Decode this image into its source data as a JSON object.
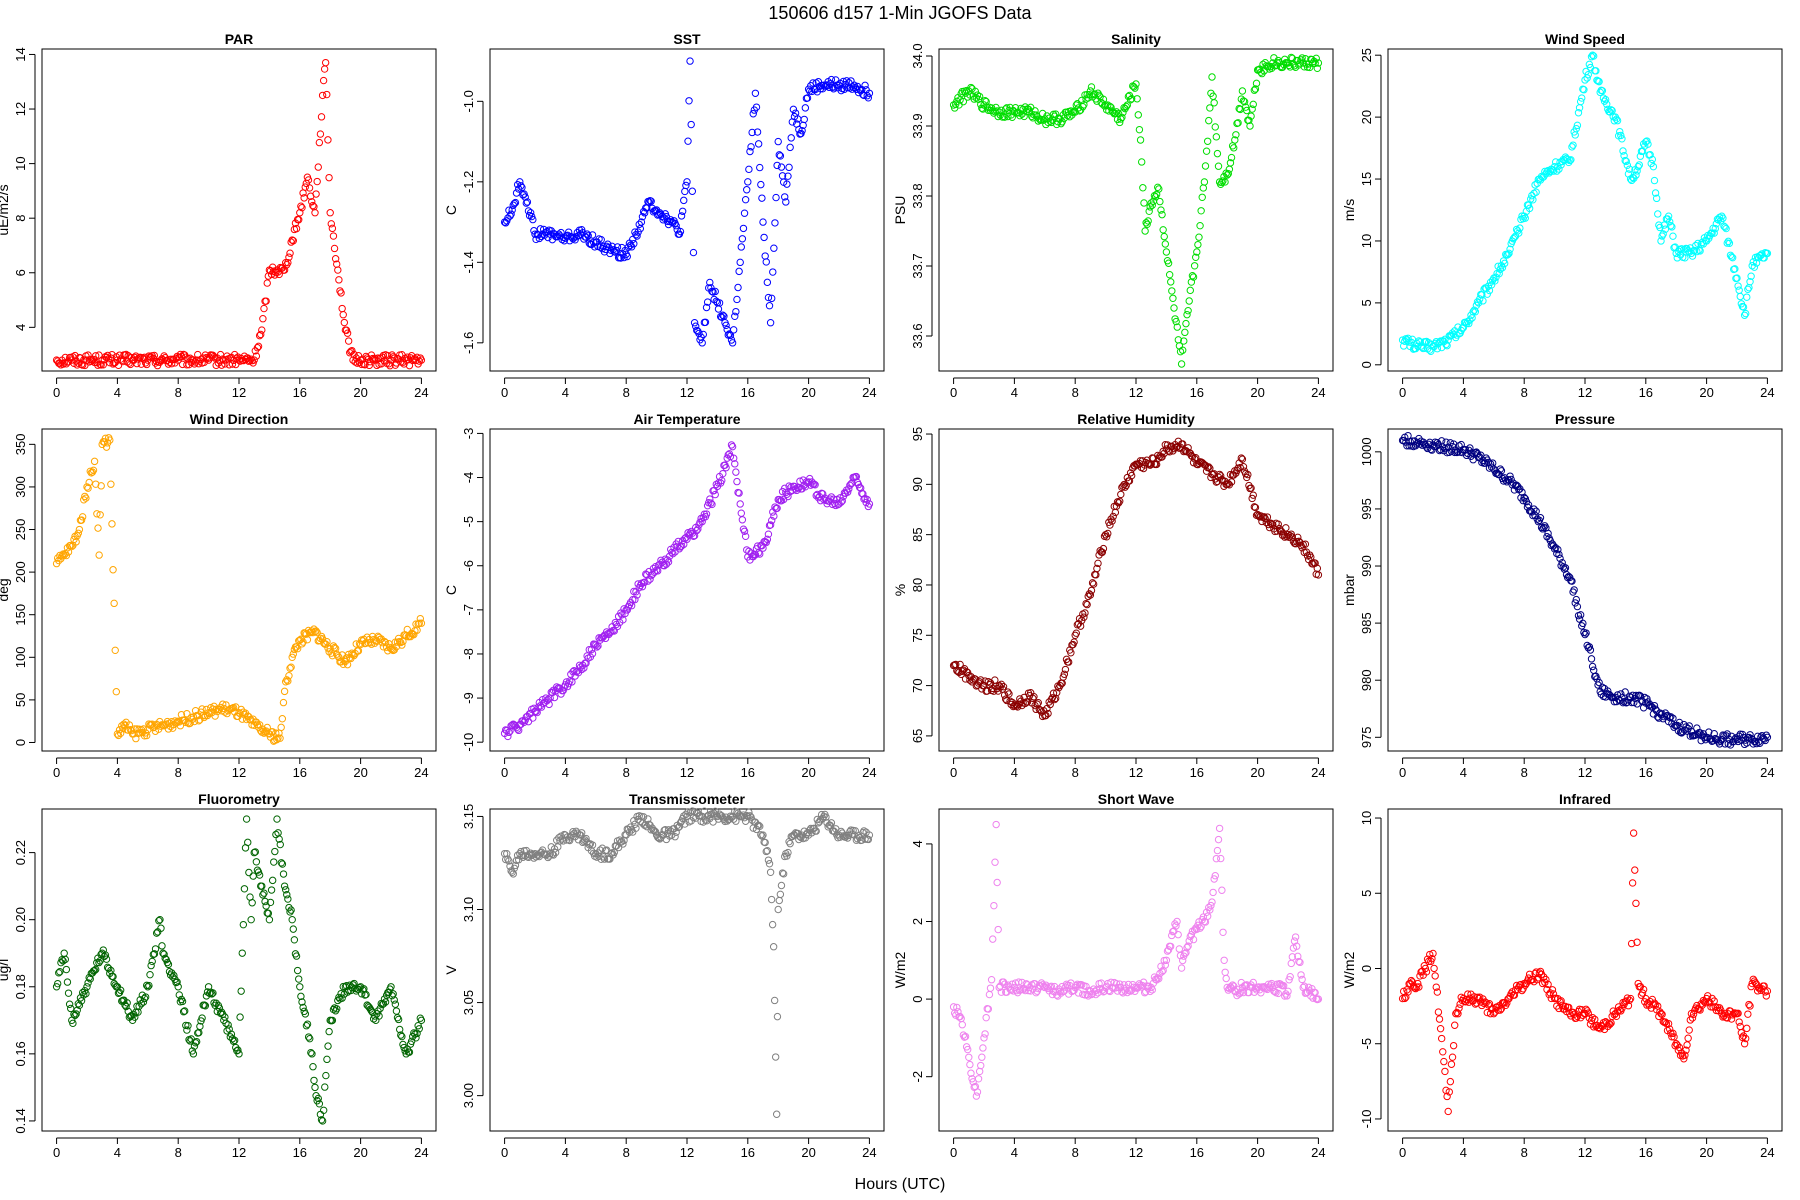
{
  "page": {
    "title": "150606   d157   1-Min  JGOFS Data",
    "xlabel": "Hours (UTC)"
  },
  "chart_data": [
    {
      "type": "scatter",
      "title": "PAR",
      "ylabel": "uE/m2/s",
      "color": "#ff0000",
      "xlim": [
        -0.96,
        24.96
      ],
      "ylim": [
        2.4,
        14.2
      ],
      "xticks": [
        0,
        4,
        8,
        12,
        16,
        20,
        24
      ],
      "yticks": [
        4,
        6,
        8,
        10,
        12,
        14
      ],
      "x": [
        0,
        1,
        2,
        3,
        4,
        5,
        6,
        7,
        8,
        9,
        10,
        11,
        12,
        13,
        13.5,
        14,
        14.5,
        15,
        15.5,
        16,
        16.5,
        17,
        17.5,
        17.7,
        18,
        18.5,
        19,
        19.5,
        20,
        21,
        22,
        23,
        24
      ],
      "y": [
        2.8,
        2.8,
        2.8,
        2.8,
        2.8,
        2.8,
        2.8,
        2.8,
        2.8,
        2.8,
        2.8,
        2.8,
        2.8,
        2.8,
        3.9,
        6.1,
        6.1,
        6.1,
        7.2,
        8.2,
        9.5,
        8.2,
        12.5,
        13.7,
        8.2,
        6.1,
        3.9,
        2.8,
        2.8,
        2.8,
        2.8,
        2.8,
        2.8
      ]
    },
    {
      "type": "scatter",
      "title": "SST",
      "ylabel": "C",
      "color": "#0000ff",
      "xlim": [
        -0.96,
        24.96
      ],
      "ylim": [
        -1.67,
        -0.87
      ],
      "xticks": [
        0,
        4,
        8,
        12,
        16,
        20,
        24
      ],
      "yticks": [
        -1.6,
        -1.4,
        -1.2,
        -1.0
      ],
      "x": [
        0,
        0.5,
        1,
        1.5,
        2,
        3,
        4,
        5,
        6,
        7,
        8,
        9,
        9.5,
        10,
        11,
        11.5,
        12,
        12.2,
        12.5,
        13,
        13.5,
        14,
        14.5,
        15,
        15.5,
        16,
        16.5,
        17,
        17.5,
        18,
        18.5,
        19,
        19.5,
        20,
        21,
        22,
        23,
        24
      ],
      "y": [
        -1.3,
        -1.27,
        -1.2,
        -1.25,
        -1.33,
        -1.33,
        -1.34,
        -1.33,
        -1.35,
        -1.37,
        -1.38,
        -1.3,
        -1.25,
        -1.27,
        -1.3,
        -1.33,
        -1.2,
        -0.9,
        -1.55,
        -1.6,
        -1.45,
        -1.5,
        -1.55,
        -1.6,
        -1.4,
        -1.2,
        -0.98,
        -1.3,
        -1.55,
        -1.1,
        -1.25,
        -1.02,
        -1.08,
        -0.97,
        -0.96,
        -0.96,
        -0.96,
        -0.98
      ]
    },
    {
      "type": "scatter",
      "title": "Salinity",
      "ylabel": "PSU",
      "color": "#00dd00",
      "xlim": [
        -0.96,
        24.96
      ],
      "ylim": [
        33.55,
        34.01
      ],
      "xticks": [
        0,
        4,
        8,
        12,
        16,
        20,
        24
      ],
      "yticks": [
        33.6,
        33.7,
        33.8,
        33.9,
        34.0
      ],
      "x": [
        0,
        1,
        2,
        3,
        4,
        5,
        6,
        7,
        8,
        9,
        10,
        11,
        12,
        12.3,
        12.6,
        13,
        13.5,
        14,
        14.5,
        15,
        15.5,
        16,
        16.5,
        17,
        17.5,
        18,
        18.5,
        19,
        19.5,
        20,
        21,
        22,
        23,
        24
      ],
      "y": [
        33.93,
        33.95,
        33.93,
        33.92,
        33.92,
        33.92,
        33.91,
        33.91,
        33.92,
        33.95,
        33.93,
        33.91,
        33.96,
        33.88,
        33.75,
        33.79,
        33.81,
        33.72,
        33.64,
        33.56,
        33.65,
        33.72,
        33.82,
        33.97,
        33.82,
        33.83,
        33.88,
        33.95,
        33.9,
        33.98,
        33.99,
        33.99,
        33.99,
        33.99
      ]
    },
    {
      "type": "scatter",
      "title": "Wind Speed",
      "ylabel": "m/s",
      "color": "#00ffff",
      "xlim": [
        -0.96,
        24.96
      ],
      "ylim": [
        -0.5,
        25.5
      ],
      "xticks": [
        0,
        4,
        8,
        12,
        16,
        20,
        24
      ],
      "yticks": [
        0,
        5,
        10,
        15,
        20,
        25
      ],
      "x": [
        0,
        1,
        2,
        3,
        4,
        5,
        6,
        7,
        8,
        9,
        10,
        11,
        12,
        12.5,
        13,
        14,
        15,
        15.5,
        16,
        16.5,
        17,
        17.5,
        18,
        19,
        20,
        21,
        22,
        22.5,
        23,
        24
      ],
      "y": [
        2,
        1.5,
        1.5,
        2,
        3,
        5,
        7,
        9,
        12,
        15,
        16,
        16.5,
        23,
        25,
        22,
        20,
        15,
        16,
        18,
        16,
        10,
        12,
        9,
        9,
        10,
        12,
        7,
        4,
        8,
        9
      ]
    },
    {
      "type": "scatter",
      "title": "Wind Direction",
      "ylabel": "deg",
      "color": "#ffa500",
      "xlim": [
        -0.96,
        24.96
      ],
      "ylim": [
        -10,
        368
      ],
      "xticks": [
        0,
        4,
        8,
        12,
        16,
        20,
        24
      ],
      "yticks": [
        0,
        50,
        100,
        150,
        200,
        250,
        300,
        350
      ],
      "x": [
        0,
        0.5,
        1,
        1.5,
        2,
        2.5,
        2.8,
        3,
        3.5,
        4,
        4.5,
        5,
        6,
        7,
        8,
        9,
        10,
        11,
        12,
        13,
        14,
        14.7,
        15,
        15.5,
        16,
        17,
        18,
        19,
        20,
        21,
        22,
        23,
        24
      ],
      "y": [
        210,
        220,
        230,
        250,
        300,
        330,
        220,
        350,
        355,
        10,
        20,
        10,
        15,
        20,
        25,
        30,
        35,
        40,
        35,
        20,
        10,
        5,
        60,
        100,
        120,
        130,
        110,
        95,
        115,
        120,
        110,
        125,
        140
      ]
    },
    {
      "type": "scatter",
      "title": "Air Temperature",
      "ylabel": "C",
      "color": "#a020f0",
      "xlim": [
        -0.96,
        24.96
      ],
      "ylim": [
        -10.2,
        -2.9
      ],
      "xticks": [
        0,
        4,
        8,
        12,
        16,
        20,
        24
      ],
      "yticks": [
        -10,
        -9,
        -8,
        -7,
        -6,
        -5,
        -4,
        -3
      ],
      "x": [
        0,
        1,
        2,
        3,
        4,
        5,
        6,
        7,
        8,
        9,
        10,
        11,
        12,
        13,
        14,
        15,
        15.5,
        16,
        17,
        18,
        19,
        20,
        21,
        22,
        23,
        24
      ],
      "y": [
        -9.8,
        -9.6,
        -9.3,
        -9,
        -8.7,
        -8.3,
        -7.8,
        -7.5,
        -7,
        -6.4,
        -6.1,
        -5.7,
        -5.4,
        -5,
        -4.2,
        -3.3,
        -4.6,
        -5.8,
        -5.6,
        -4.5,
        -4.2,
        -4.1,
        -4.5,
        -4.6,
        -4,
        -4.6
      ]
    },
    {
      "type": "scatter",
      "title": "Relative Humidity",
      "ylabel": "%",
      "color": "#8b0000",
      "xlim": [
        -0.96,
        24.96
      ],
      "ylim": [
        63.5,
        95.5
      ],
      "xticks": [
        0,
        4,
        8,
        12,
        16,
        20,
        24
      ],
      "yticks": [
        65,
        70,
        75,
        80,
        85,
        90,
        95
      ],
      "x": [
        0,
        1,
        2,
        3,
        4,
        5,
        6,
        7,
        8,
        9,
        10,
        11,
        12,
        13,
        14,
        15,
        16,
        17,
        18,
        19,
        20,
        21,
        22,
        23,
        24
      ],
      "y": [
        72,
        71,
        70,
        70,
        68,
        69,
        67,
        70,
        75,
        79,
        85,
        89,
        92,
        92,
        93.5,
        94,
        92,
        91,
        90,
        92.5,
        87,
        86,
        85,
        84,
        81
      ]
    },
    {
      "type": "scatter",
      "title": "Pressure",
      "ylabel": "mbar",
      "color": "#000080",
      "xlim": [
        -0.96,
        24.96
      ],
      "ylim": [
        973.8,
        1002
      ],
      "xticks": [
        0,
        4,
        8,
        12,
        16,
        20,
        24
      ],
      "yticks": [
        975,
        980,
        985,
        990,
        995,
        1000
      ],
      "x": [
        0,
        1,
        2,
        3,
        4,
        5,
        6,
        7,
        8,
        9,
        10,
        11,
        12,
        13,
        14,
        15,
        16,
        17,
        18,
        19,
        20,
        21,
        22,
        23,
        24
      ],
      "y": [
        1001,
        1000.8,
        1000.6,
        1000.4,
        1000.2,
        999.5,
        998.5,
        997.5,
        996,
        994,
        991.5,
        989,
        984,
        979,
        978.5,
        978.5,
        978,
        977,
        976,
        975.5,
        975,
        974.8,
        974.8,
        974.8,
        975
      ]
    },
    {
      "type": "scatter",
      "title": "Fluorometry",
      "ylabel": "ug/l",
      "color": "#006400",
      "xlim": [
        -0.96,
        24.96
      ],
      "ylim": [
        0.137,
        0.233
      ],
      "xticks": [
        0,
        4,
        8,
        12,
        16,
        20,
        24
      ],
      "yticks": [
        0.14,
        0.16,
        0.18,
        0.2,
        0.22
      ],
      "x": [
        0,
        0.5,
        1,
        2,
        3,
        4,
        5,
        6,
        6.8,
        7,
        8,
        9,
        10,
        11,
        12,
        12.5,
        12.8,
        13,
        13.5,
        14,
        14.5,
        15,
        15.5,
        16,
        16.8,
        17,
        17.5,
        18,
        19,
        20,
        21,
        22,
        23,
        24
      ],
      "y": [
        0.18,
        0.19,
        0.17,
        0.18,
        0.19,
        0.18,
        0.17,
        0.18,
        0.2,
        0.19,
        0.18,
        0.16,
        0.18,
        0.17,
        0.16,
        0.23,
        0.2,
        0.22,
        0.21,
        0.2,
        0.23,
        0.21,
        0.2,
        0.18,
        0.16,
        0.15,
        0.14,
        0.17,
        0.18,
        0.18,
        0.17,
        0.18,
        0.16,
        0.17
      ]
    },
    {
      "type": "scatter",
      "title": "Transmissometer",
      "ylabel": "V",
      "color": "#808080",
      "xlim": [
        -0.96,
        24.96
      ],
      "ylim": [
        2.981,
        3.154
      ],
      "xticks": [
        0,
        4,
        8,
        12,
        16,
        20,
        24
      ],
      "yticks": [
        3.0,
        3.05,
        3.1,
        3.15
      ],
      "x": [
        0,
        0.5,
        1,
        2,
        3,
        4,
        5,
        6,
        7,
        8,
        9,
        10,
        11,
        12,
        13,
        14,
        15,
        16,
        17,
        17.5,
        17.7,
        17.9,
        18,
        18.5,
        19,
        20,
        21,
        22,
        23,
        24
      ],
      "y": [
        3.13,
        3.12,
        3.13,
        3.13,
        3.13,
        3.14,
        3.14,
        3.13,
        3.13,
        3.14,
        3.15,
        3.14,
        3.14,
        3.15,
        3.15,
        3.15,
        3.15,
        3.15,
        3.14,
        3.12,
        3.08,
        2.99,
        3.1,
        3.13,
        3.14,
        3.14,
        3.15,
        3.14,
        3.14,
        3.14
      ]
    },
    {
      "type": "scatter",
      "title": "Short Wave",
      "ylabel": "W/m2",
      "color": "#ee82ee",
      "xlim": [
        -0.96,
        24.96
      ],
      "ylim": [
        -3.4,
        4.9
      ],
      "xticks": [
        0,
        4,
        8,
        12,
        16,
        20,
        24
      ],
      "yticks": [
        -2,
        0,
        2,
        4
      ],
      "x": [
        0,
        0.5,
        1,
        1.5,
        2,
        2.5,
        2.8,
        3,
        4,
        5,
        6,
        7,
        8,
        9,
        10,
        11,
        12,
        13,
        14,
        14.7,
        15,
        15.5,
        16,
        16.5,
        17,
        17.5,
        17.8,
        18,
        18.5,
        19,
        20,
        21,
        22,
        22.5,
        23,
        24
      ],
      "y": [
        -0.2,
        -0.5,
        -1.5,
        -2.5,
        -1,
        0.5,
        4.5,
        0.3,
        0.3,
        0.3,
        0.3,
        0.2,
        0.3,
        0.2,
        0.3,
        0.3,
        0.3,
        0.3,
        1,
        2,
        0.8,
        1.5,
        1.8,
        2,
        2.5,
        4.4,
        1,
        0.3,
        0.2,
        0.3,
        0.3,
        0.3,
        0.2,
        1.6,
        0.3,
        0
      ]
    },
    {
      "type": "scatter",
      "title": "Infrared",
      "ylabel": "W/m2",
      "color": "#ff0000",
      "xlim": [
        -0.96,
        24.96
      ],
      "ylim": [
        -10.8,
        10.6
      ],
      "xticks": [
        0,
        4,
        8,
        12,
        16,
        20,
        24
      ],
      "yticks": [
        -10,
        -5,
        0,
        5,
        10
      ],
      "x": [
        0,
        0.5,
        1,
        1.5,
        2,
        2.5,
        3,
        3.5,
        4,
        5,
        6,
        7,
        8,
        9,
        10,
        11,
        12,
        13,
        14,
        15,
        15.2,
        15.5,
        16,
        17,
        18,
        18.5,
        19,
        20,
        21,
        22,
        22.5,
        23,
        24
      ],
      "y": [
        -2,
        -1,
        -1,
        0,
        1,
        -4,
        -9.5,
        -3,
        -2,
        -2,
        -3,
        -2,
        -1,
        -0.3,
        -2,
        -3,
        -3,
        -4,
        -3,
        -2,
        9,
        -1,
        -2,
        -3,
        -5,
        -6,
        -3,
        -2,
        -3,
        -3,
        -5,
        -1,
        -1.5
      ]
    }
  ]
}
